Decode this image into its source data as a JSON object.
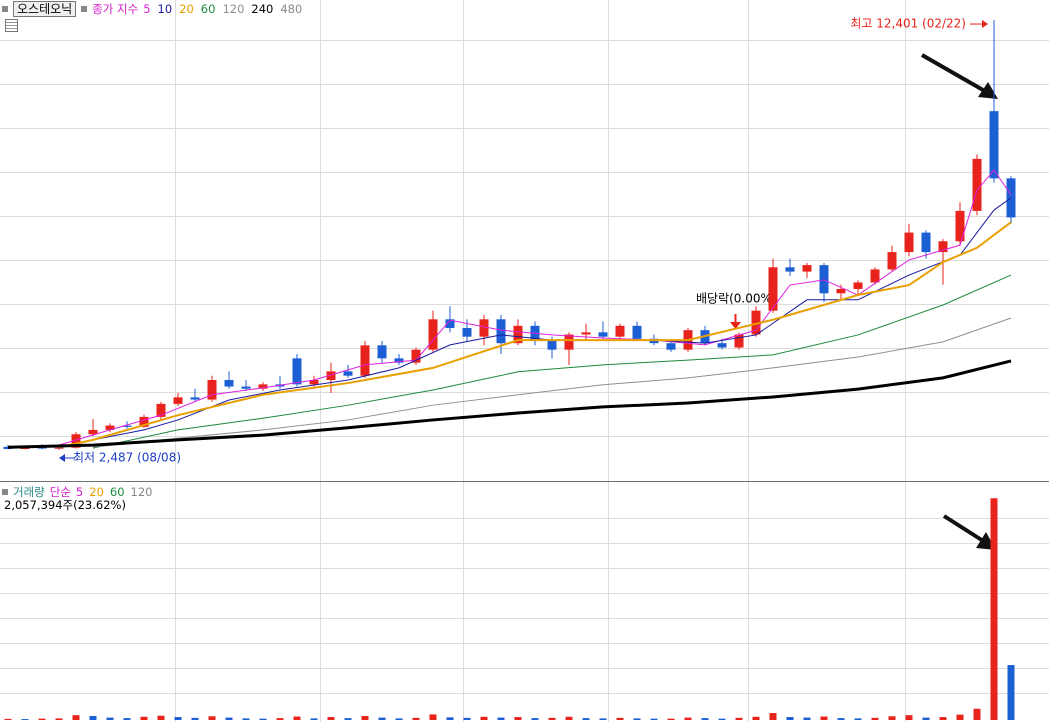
{
  "chart_data": [
    {
      "type": "candlestick",
      "title": "오스테오닉",
      "legend_label": "종가 지수",
      "legend_label_color": "#d020c8",
      "legend_extra": [
        "480"
      ],
      "legend_extra_color": "#888888",
      "up_color": "#e8231b",
      "down_color": "#1c5fd4",
      "open": [
        2560,
        2510,
        2550,
        2520,
        2540,
        2850,
        2950,
        3050,
        3020,
        3250,
        3550,
        3700,
        3650,
        4100,
        3950,
        3900,
        4000,
        4600,
        4000,
        4100,
        4300,
        4200,
        4900,
        4600,
        4500,
        4800,
        5500,
        5300,
        5100,
        5500,
        4950,
        5350,
        5000,
        4800,
        5150,
        5200,
        5100,
        5350,
        5050,
        4950,
        4800,
        5250,
        4950,
        4850,
        5150,
        5700,
        6700,
        6600,
        6750,
        6100,
        6200,
        6350,
        6650,
        7050,
        7500,
        7050,
        7300,
        8000,
        10300,
        8750
      ],
      "high": [
        2600,
        2580,
        2620,
        2560,
        2900,
        3200,
        3100,
        3150,
        3300,
        3600,
        3800,
        3900,
        4200,
        4300,
        4100,
        4050,
        4200,
        4700,
        4200,
        4500,
        4450,
        5000,
        5000,
        4700,
        4850,
        5700,
        5800,
        5500,
        5600,
        5600,
        5500,
        5450,
        5100,
        5200,
        5400,
        5450,
        5400,
        5450,
        5150,
        5000,
        5300,
        5350,
        5050,
        5200,
        5800,
        6900,
        6900,
        6800,
        6800,
        6300,
        6400,
        6700,
        7200,
        7700,
        7550,
        7350,
        8200,
        9300,
        12401,
        8800
      ],
      "low": [
        2500,
        2500,
        2500,
        2487,
        2520,
        2800,
        2900,
        2980,
        3000,
        3200,
        3500,
        3600,
        3600,
        3900,
        3850,
        3850,
        3900,
        3950,
        3950,
        3800,
        4150,
        4150,
        4500,
        4450,
        4450,
        4750,
        5200,
        5000,
        4900,
        4700,
        4900,
        4900,
        4600,
        4450,
        5000,
        5050,
        5000,
        5000,
        4900,
        4750,
        4750,
        4900,
        4800,
        4800,
        5100,
        5650,
        6500,
        6450,
        5900,
        5950,
        6050,
        6300,
        6600,
        6950,
        6900,
        6300,
        7200,
        7900,
        8650,
        7700
      ],
      "close": [
        2510,
        2550,
        2520,
        2540,
        2850,
        2950,
        3050,
        3020,
        3250,
        3550,
        3700,
        3650,
        4100,
        3950,
        3900,
        4000,
        3950,
        4000,
        4100,
        4300,
        4200,
        4900,
        4600,
        4500,
        4800,
        5500,
        5300,
        5100,
        5500,
        4950,
        5350,
        5000,
        4800,
        5150,
        5200,
        5100,
        5350,
        5050,
        4950,
        4800,
        5250,
        4950,
        4850,
        5150,
        5700,
        6700,
        6600,
        6750,
        6100,
        6200,
        6350,
        6650,
        7050,
        7500,
        7050,
        7300,
        8000,
        9200,
        8750,
        7850
      ],
      "ylim": [
        1795,
        12863
      ],
      "high_label": "최고 12,401 (02/22)",
      "high_label_color": "#e8231b",
      "low_label": "최저 2,487 (08/08)",
      "low_label_color": "#1c3fc4",
      "dividend_label": "배당락(0.00%)",
      "series": [
        {
          "name": "5",
          "color": "#e020e0",
          "width": 1,
          "x": [
            3,
            6,
            9,
            12,
            15,
            18,
            21,
            24,
            26,
            29,
            32,
            35,
            38,
            41,
            44,
            46,
            48,
            50,
            53,
            56,
            57,
            58,
            59
          ],
          "values": [
            2600,
            2950,
            3290,
            3760,
            3920,
            4100,
            4450,
            4560,
            5480,
            5250,
            5140,
            5070,
            5020,
            4910,
            5250,
            6290,
            6410,
            6060,
            6870,
            7210,
            8480,
            8940,
            8370
          ]
        },
        {
          "name": "10",
          "color": "#1a1aa0",
          "width": 1,
          "x": [
            3,
            5,
            8,
            10,
            13,
            16,
            20,
            23,
            26,
            29,
            32,
            35,
            38,
            41,
            44,
            47,
            50,
            53,
            56,
            58,
            59
          ],
          "values": [
            2530,
            2720,
            2950,
            3180,
            3640,
            3870,
            4100,
            4380,
            4910,
            5140,
            5020,
            5020,
            5020,
            4950,
            5140,
            5950,
            5950,
            6520,
            6980,
            8020,
            8300
          ]
        },
        {
          "name": "20",
          "color": "#e8a000",
          "width": 2,
          "x": [
            3,
            5,
            10,
            15,
            20,
            25,
            30,
            35,
            40,
            45,
            50,
            53,
            55,
            57,
            59
          ],
          "values": [
            2550,
            2720,
            3290,
            3760,
            4030,
            4380,
            5020,
            5020,
            5020,
            5490,
            6060,
            6290,
            6820,
            7150,
            7740
          ]
        },
        {
          "name": "60",
          "color": "#1e8a3a",
          "width": 1,
          "x": [
            5,
            10,
            15,
            20,
            25,
            30,
            35,
            40,
            45,
            50,
            55,
            59
          ],
          "values": [
            2530,
            2950,
            3220,
            3520,
            3870,
            4290,
            4450,
            4560,
            4680,
            5140,
            5830,
            6520
          ]
        },
        {
          "name": "120",
          "color": "#909090",
          "width": 1,
          "x": [
            5,
            10,
            15,
            20,
            25,
            30,
            35,
            40,
            45,
            50,
            55,
            59
          ],
          "values": [
            2550,
            2760,
            2950,
            3180,
            3520,
            3760,
            3990,
            4150,
            4380,
            4630,
            4980,
            5530
          ]
        },
        {
          "name": "240",
          "color": "#000000",
          "width": 3,
          "x": [
            0,
            5,
            10,
            15,
            20,
            25,
            30,
            35,
            40,
            45,
            50,
            55,
            59
          ],
          "values": [
            2550,
            2600,
            2720,
            2830,
            3000,
            3180,
            3340,
            3480,
            3570,
            3710,
            3890,
            4150,
            4540
          ]
        }
      ]
    },
    {
      "type": "bar",
      "title": "거래량",
      "title_color": "#2a8a8a",
      "ma_type": "단순",
      "ma_type_color": "#d020c8",
      "ma_periods": [
        "5",
        "20",
        "60",
        "120"
      ],
      "ma_colors": [
        "#d020c8",
        "#e8a000",
        "#1e8a3a",
        "#888888"
      ],
      "current_label": "2,057,394주(23.62%)",
      "up_color": "#e8231b",
      "down_color": "#1c5fd4",
      "values": [
        42000,
        35000,
        51000,
        60000,
        180000,
        150000,
        90000,
        70000,
        120000,
        160000,
        110000,
        80000,
        140000,
        90000,
        60000,
        50000,
        70000,
        130000,
        60000,
        110000,
        70000,
        150000,
        90000,
        60000,
        80000,
        210000,
        100000,
        80000,
        120000,
        90000,
        110000,
        70000,
        80000,
        120000,
        70000,
        60000,
        80000,
        60000,
        50000,
        50000,
        90000,
        70000,
        50000,
        80000,
        120000,
        260000,
        110000,
        90000,
        130000,
        70000,
        60000,
        80000,
        140000,
        180000,
        90000,
        110000,
        200000,
        420000,
        8300000,
        2057394
      ],
      "ylim": [
        0,
        8870000
      ]
    }
  ]
}
